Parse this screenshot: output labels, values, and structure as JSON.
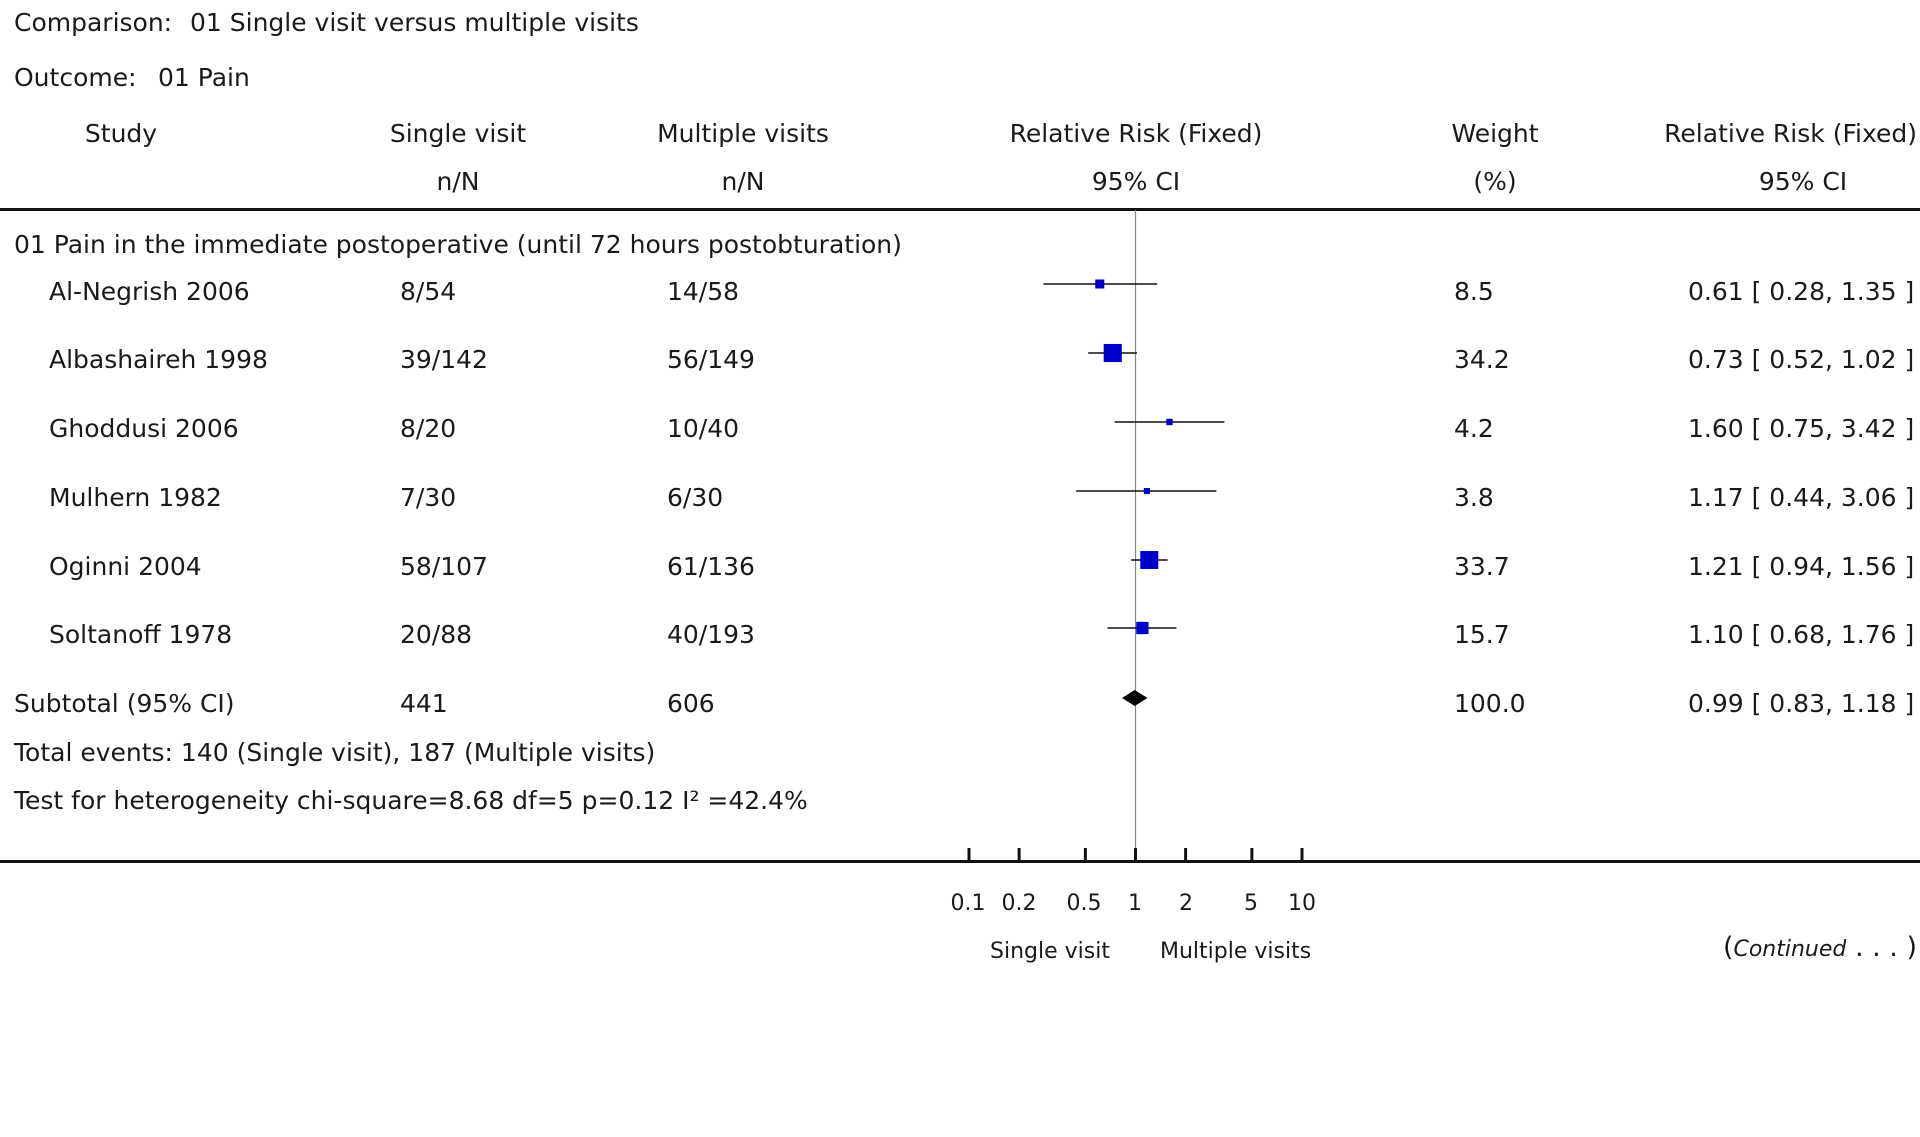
{
  "header": {
    "comparison_label": "Comparison:",
    "comparison_value": "01 Single visit versus multiple visits",
    "outcome_label": "Outcome:",
    "outcome_value": "01 Pain"
  },
  "columns": {
    "study": "Study",
    "single_visit": "Single visit",
    "single_visit_sub": "n/N",
    "multiple_visits": "Multiple visits",
    "multiple_visits_sub": "n/N",
    "rr_plot": "Relative Risk (Fixed)",
    "rr_plot_sub": "95% CI",
    "weight": "Weight",
    "weight_sub": "(%)",
    "rr_value": "Relative Risk (Fixed)",
    "rr_value_sub": "95% CI"
  },
  "subgroup_title": "01 Pain in the immediate postoperative (until 72 hours postobturation)",
  "subtotal": {
    "label": "Subtotal (95% CI)",
    "single": "441",
    "multiple": "606",
    "weight": "100.0",
    "ci_text": "0.99 [ 0.83, 1.18 ]"
  },
  "total_events": "Total events: 140 (Single visit), 187 (Multiple visits)",
  "heterogeneity": "Test for heterogeneity chi-square=8.68 df=5 p=0.12 I² =42.4%",
  "axis": {
    "left_label": "Single visit",
    "right_label": "Multiple visits"
  },
  "continued": {
    "open": "(",
    "word": "Continued",
    "dots": " . . . )"
  },
  "chart_data": {
    "type": "forest",
    "scale": "log",
    "xlim": [
      0.1,
      10
    ],
    "reference_line": 1,
    "ticks": [
      "0.1",
      "0.2",
      "0.5",
      "1",
      "2",
      "5",
      "10"
    ],
    "tick_values": [
      0.1,
      0.2,
      0.5,
      1,
      2,
      5,
      10
    ],
    "marker_color": "#0000cc",
    "studies": [
      {
        "name": "Al-Negrish 2006",
        "single": "8/54",
        "multiple": "14/58",
        "weight": "8.5",
        "rr": 0.61,
        "lo": 0.28,
        "hi": 1.35,
        "ci_text": "0.61 [ 0.28, 1.35 ]"
      },
      {
        "name": "Albashaireh 1998",
        "single": "39/142",
        "multiple": "56/149",
        "weight": "34.2",
        "rr": 0.73,
        "lo": 0.52,
        "hi": 1.02,
        "ci_text": "0.73 [ 0.52, 1.02 ]"
      },
      {
        "name": "Ghoddusi 2006",
        "single": "8/20",
        "multiple": "10/40",
        "weight": "4.2",
        "rr": 1.6,
        "lo": 0.75,
        "hi": 3.42,
        "ci_text": "1.60 [ 0.75, 3.42 ]"
      },
      {
        "name": "Mulhern 1982",
        "single": "7/30",
        "multiple": "6/30",
        "weight": "3.8",
        "rr": 1.17,
        "lo": 0.44,
        "hi": 3.06,
        "ci_text": "1.17 [ 0.44, 3.06 ]"
      },
      {
        "name": "Oginni 2004",
        "single": "58/107",
        "multiple": "61/136",
        "weight": "33.7",
        "rr": 1.21,
        "lo": 0.94,
        "hi": 1.56,
        "ci_text": "1.21 [ 0.94, 1.56 ]"
      },
      {
        "name": "Soltanoff 1978",
        "single": "20/88",
        "multiple": "40/193",
        "weight": "15.7",
        "rr": 1.1,
        "lo": 0.68,
        "hi": 1.76,
        "ci_text": "1.10 [ 0.68, 1.76 ]"
      }
    ],
    "pooled": {
      "rr": 0.99,
      "lo": 0.83,
      "hi": 1.18
    }
  }
}
